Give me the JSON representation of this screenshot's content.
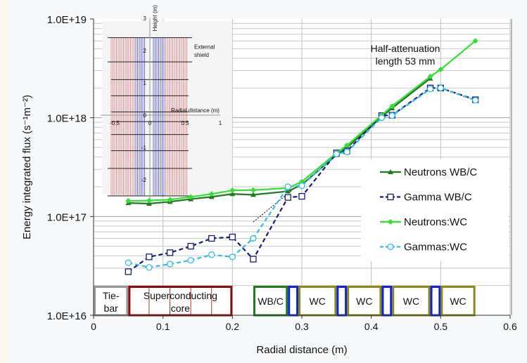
{
  "chart_data": {
    "type": "line",
    "xlabel": "Radial distance (m)",
    "ylabel": "Energy integrated flux (s⁻¹m⁻²)",
    "xlim": [
      0,
      0.6
    ],
    "ylim": [
      1e+16,
      1e+19
    ],
    "yscale": "log",
    "grid": true,
    "x_ticks": [
      "0",
      "0.1",
      "0.2",
      "0.3",
      "0.4",
      "0.5",
      "0.6"
    ],
    "y_ticks": [
      "1.0E+16",
      "1.0E+17",
      "1.0E+18",
      "1.0E+19"
    ],
    "legend_position": "right",
    "x": [
      0.05,
      0.08,
      0.11,
      0.14,
      0.17,
      0.2,
      0.23,
      0.28,
      0.3,
      0.35,
      0.365,
      0.415,
      0.43,
      0.485,
      0.5,
      0.55
    ],
    "series": [
      {
        "name": "Neutrons WB/C",
        "color": "#1f7a1f",
        "dash": false,
        "marker": "triangle",
        "values": [
          1.37e+17,
          1.35e+17,
          1.41e+17,
          1.5e+17,
          1.58e+17,
          1.69e+17,
          1.66e+17,
          1.8e+17,
          2.1e+17,
          4.2e+17,
          5e+17,
          1.02e+18,
          1.25e+18,
          2.5e+18,
          null,
          null
        ]
      },
      {
        "name": "Gamma WB/C",
        "color": "#1a1a7a",
        "dash": true,
        "marker": "square",
        "values": [
          2.76e+16,
          3.9e+16,
          4.3e+16,
          5e+16,
          6e+16,
          6.2e+16,
          3.7e+16,
          1.56e+17,
          1.6e+17,
          4.4e+17,
          4.6e+17,
          1.05e+18,
          1.06e+18,
          2e+18,
          2e+18,
          1.52e+18
        ]
      },
      {
        "name": "Neutrons:WC",
        "color": "#33e033",
        "dash": false,
        "marker": "diamond",
        "values": [
          1.44e+17,
          1.45e+17,
          1.48e+17,
          1.58e+17,
          1.69e+17,
          1.84e+17,
          1.85e+17,
          1.94e+17,
          2.25e+17,
          4.4e+17,
          5.26e+17,
          1.06e+18,
          1.31e+18,
          2.61e+18,
          3.08e+18,
          6e+18
        ]
      },
      {
        "name": "Gammas:WC",
        "color": "#33bbe8",
        "dash": true,
        "marker": "circle",
        "values": [
          3.4e+16,
          3.05e+16,
          3.3e+16,
          3.6e+16,
          4.1e+16,
          3.9e+16,
          6e+16,
          2e+17,
          2.05e+17,
          4.3e+17,
          4.5e+17,
          1e+18,
          1.05e+18,
          1.95e+18,
          2e+18,
          1.5e+18
        ]
      }
    ],
    "trendline": {
      "x": [
        0.23,
        0.485
      ],
      "y": [
        8.8e+16,
        2.6e+18
      ],
      "color": "#000000"
    },
    "annotation": {
      "line1": "Half-attenuation",
      "line2": "length 53 mm"
    },
    "regions": [
      {
        "label": [
          "Tie-",
          "bar"
        ],
        "x0": 0,
        "x1": 0.05,
        "color": "#999999"
      },
      {
        "label": [
          "Superconducting",
          "core"
        ],
        "x0": 0.05,
        "x1": 0.2,
        "color": "#8b0a0a",
        "subdivisions": [
          0.08,
          0.11,
          0.14,
          0.17
        ]
      },
      {
        "label": [
          "WB/C"
        ],
        "x0": 0.23,
        "x1": 0.28,
        "color": "#1f7a1f"
      },
      {
        "label": [
          ""
        ],
        "x0": 0.28,
        "x1": 0.295,
        "color": "#1020e0"
      },
      {
        "label": [
          "WC"
        ],
        "x0": 0.295,
        "x1": 0.35,
        "color": "#8a8a1a"
      },
      {
        "label": [
          ""
        ],
        "x0": 0.35,
        "x1": 0.365,
        "color": "#1020e0"
      },
      {
        "label": [
          "WC"
        ],
        "x0": 0.365,
        "x1": 0.415,
        "color": "#8a8a1a"
      },
      {
        "label": [
          ""
        ],
        "x0": 0.415,
        "x1": 0.43,
        "color": "#1020e0"
      },
      {
        "label": [
          "WC"
        ],
        "x0": 0.43,
        "x1": 0.485,
        "color": "#8a8a1a"
      },
      {
        "label": [
          ""
        ],
        "x0": 0.485,
        "x1": 0.5,
        "color": "#1020e0"
      },
      {
        "label": [
          "WC"
        ],
        "x0": 0.5,
        "x1": 0.55,
        "color": "#8a8a1a"
      }
    ],
    "inset": {
      "xlabel": "Radial distance (m)",
      "ylabel": "Height (m)",
      "x_ticks": [
        "-0.5",
        "0",
        "0.5",
        "1"
      ],
      "y_ticks": [
        "3",
        "2",
        "1",
        "0",
        "-1",
        "-2"
      ],
      "annotation_line1": "External",
      "annotation_line2": "shield"
    }
  }
}
